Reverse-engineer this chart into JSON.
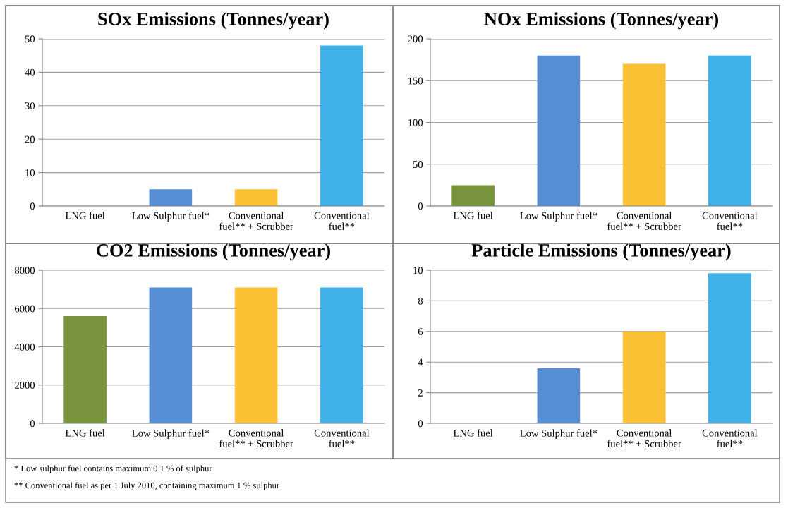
{
  "chart_data": [
    {
      "type": "bar",
      "title": "SOx Emissions (Tonnes/year)",
      "categories": [
        "LNG fuel",
        "Low Sulphur fuel*",
        "Conventional\nfuel** + Scrubber",
        "Conventional\nfuel**"
      ],
      "values": [
        0,
        5,
        5,
        48
      ],
      "colors": [
        "#77933c",
        "#558ed5",
        "#f9c133",
        "#3fb0e8"
      ],
      "ylim": [
        0,
        50
      ],
      "yticks": [
        0,
        10,
        20,
        30,
        40,
        50
      ],
      "grid": "y",
      "legend": false
    },
    {
      "type": "bar",
      "title": "NOx Emissions (Tonnes/year)",
      "categories": [
        "LNG fuel",
        "Low Sulphur fuel*",
        "Conventional\nfuel** + Scrubber",
        "Conventional\nfuel**"
      ],
      "values": [
        25,
        180,
        170,
        180
      ],
      "colors": [
        "#77933c",
        "#558ed5",
        "#f9c133",
        "#3fb0e8"
      ],
      "ylim": [
        0,
        200
      ],
      "yticks": [
        0,
        50,
        100,
        150,
        200
      ],
      "grid": "y",
      "legend": false
    },
    {
      "type": "bar",
      "title": "CO2 Emissions (Tonnes/year)",
      "categories": [
        "LNG fuel",
        "Low Sulphur fuel*",
        "Conventional\nfuel** + Scrubber",
        "Conventional\nfuel**"
      ],
      "values": [
        5600,
        7100,
        7100,
        7100
      ],
      "colors": [
        "#77933c",
        "#558ed5",
        "#f9c133",
        "#3fb0e8"
      ],
      "ylim": [
        0,
        8000
      ],
      "yticks": [
        0,
        2000,
        4000,
        6000,
        8000
      ],
      "grid": "y",
      "legend": false
    },
    {
      "type": "bar",
      "title": "Particle Emissions (Tonnes/year)",
      "categories": [
        "LNG fuel",
        "Low Sulphur fuel*",
        "Conventional\nfuel** + Scrubber",
        "Conventional\nfuel**"
      ],
      "values": [
        0,
        3.6,
        6,
        9.8
      ],
      "colors": [
        "#77933c",
        "#558ed5",
        "#f9c133",
        "#3fb0e8"
      ],
      "ylim": [
        0,
        10
      ],
      "yticks": [
        0,
        2,
        4,
        6,
        8,
        10
      ],
      "grid": "y",
      "legend": false,
      "annotations": [
        "* Low sulphur fuel contains maximum 0.1 % of sulphur",
        "** Conventional fuel as per 1 July 2010, containing maximum 1 % sulphur"
      ]
    }
  ]
}
